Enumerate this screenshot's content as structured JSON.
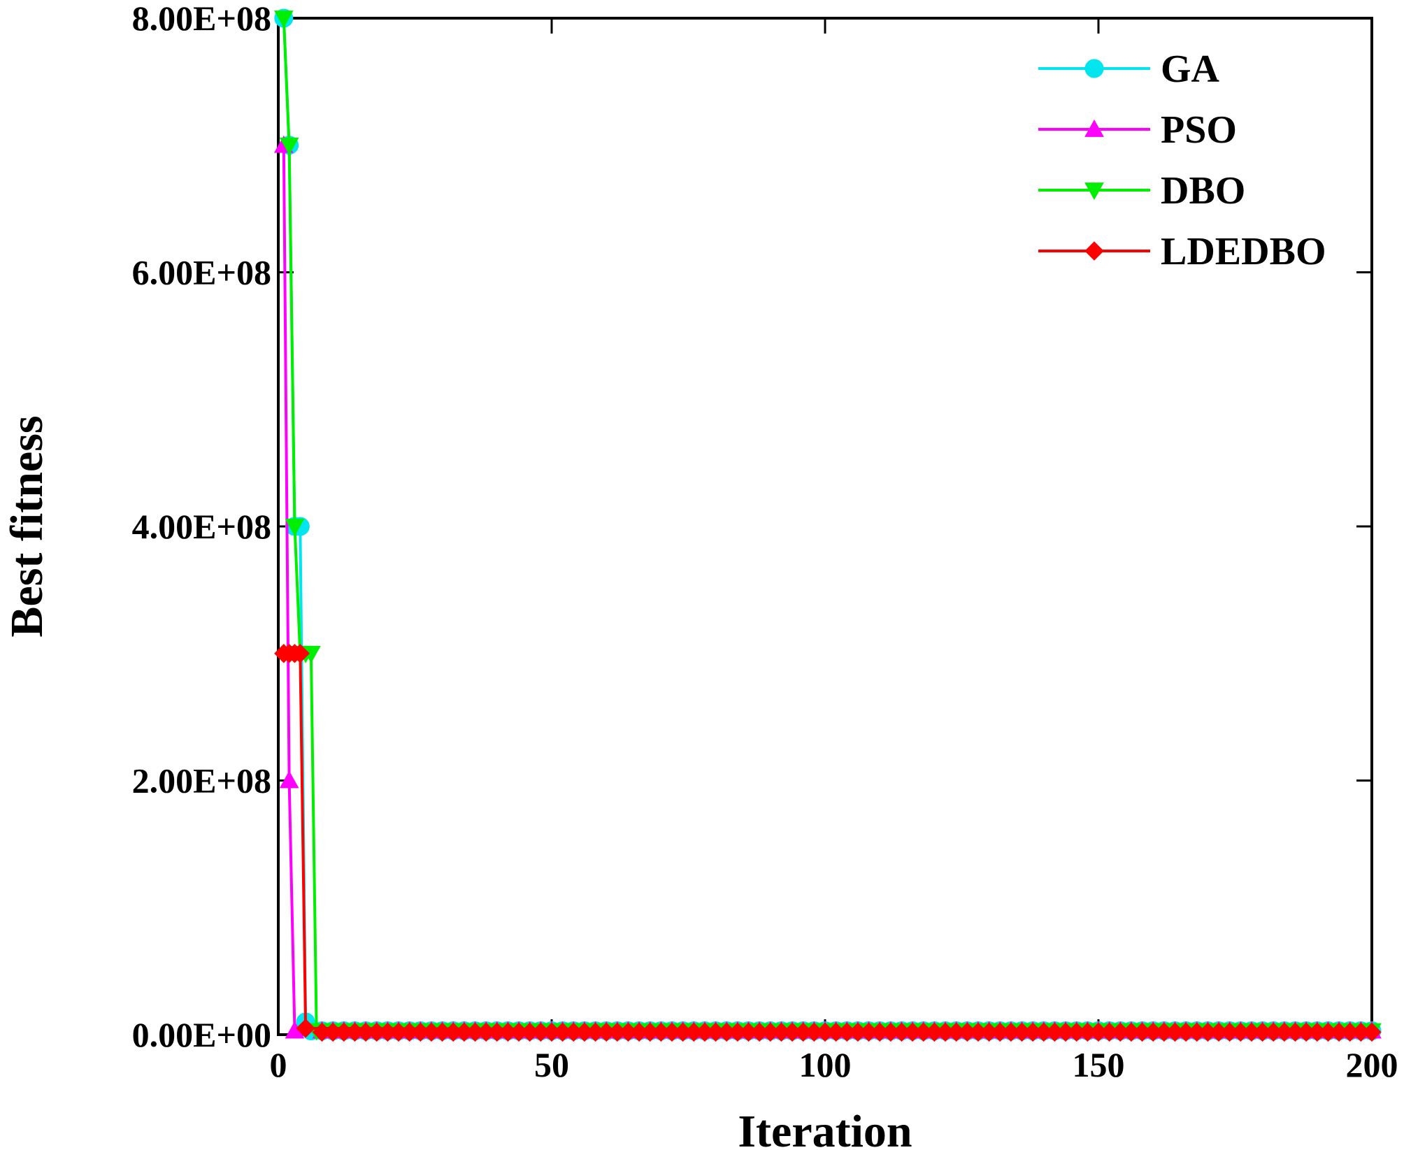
{
  "chart_data": {
    "type": "line",
    "xlabel": "Iteration",
    "ylabel": "Best fitness",
    "xlim": [
      0,
      200
    ],
    "ylim": [
      0,
      800000000
    ],
    "x_ticks": [
      0,
      50,
      100,
      150,
      200
    ],
    "x_tick_labels": [
      "0",
      "50",
      "100",
      "150",
      "200"
    ],
    "y_ticks": [
      0,
      200000000,
      400000000,
      600000000,
      800000000
    ],
    "y_tick_labels": [
      "0.00E+00",
      "2.00E+08",
      "4.00E+08",
      "6.00E+08",
      "8.00E+08"
    ],
    "grid": false,
    "legend_position": "top-right",
    "series": [
      {
        "name": "GA",
        "color": "#00e5ee",
        "marker": "circle",
        "x": [
          1,
          2,
          3,
          4,
          5,
          6,
          200
        ],
        "y": [
          800000000,
          700000000,
          400000000,
          400000000,
          10000000,
          3000000,
          3000000
        ]
      },
      {
        "name": "PSO",
        "color": "#ff00ff",
        "marker": "triangle-up",
        "x": [
          1,
          2,
          3,
          200
        ],
        "y": [
          700000000,
          200000000,
          3000000,
          3000000
        ]
      },
      {
        "name": "DBO",
        "color": "#00ee00",
        "marker": "triangle-down",
        "x": [
          1,
          2,
          3,
          4,
          5,
          6,
          7,
          200
        ],
        "y": [
          800000000,
          700000000,
          400000000,
          300000000,
          300000000,
          300000000,
          3000000,
          3000000
        ]
      },
      {
        "name": "LDEDBO",
        "color": "#ff0000",
        "marker": "diamond",
        "x": [
          1,
          2,
          3,
          4,
          5,
          200
        ],
        "y": [
          300000000,
          300000000,
          300000000,
          300000000,
          5000000,
          2000000
        ]
      }
    ]
  }
}
